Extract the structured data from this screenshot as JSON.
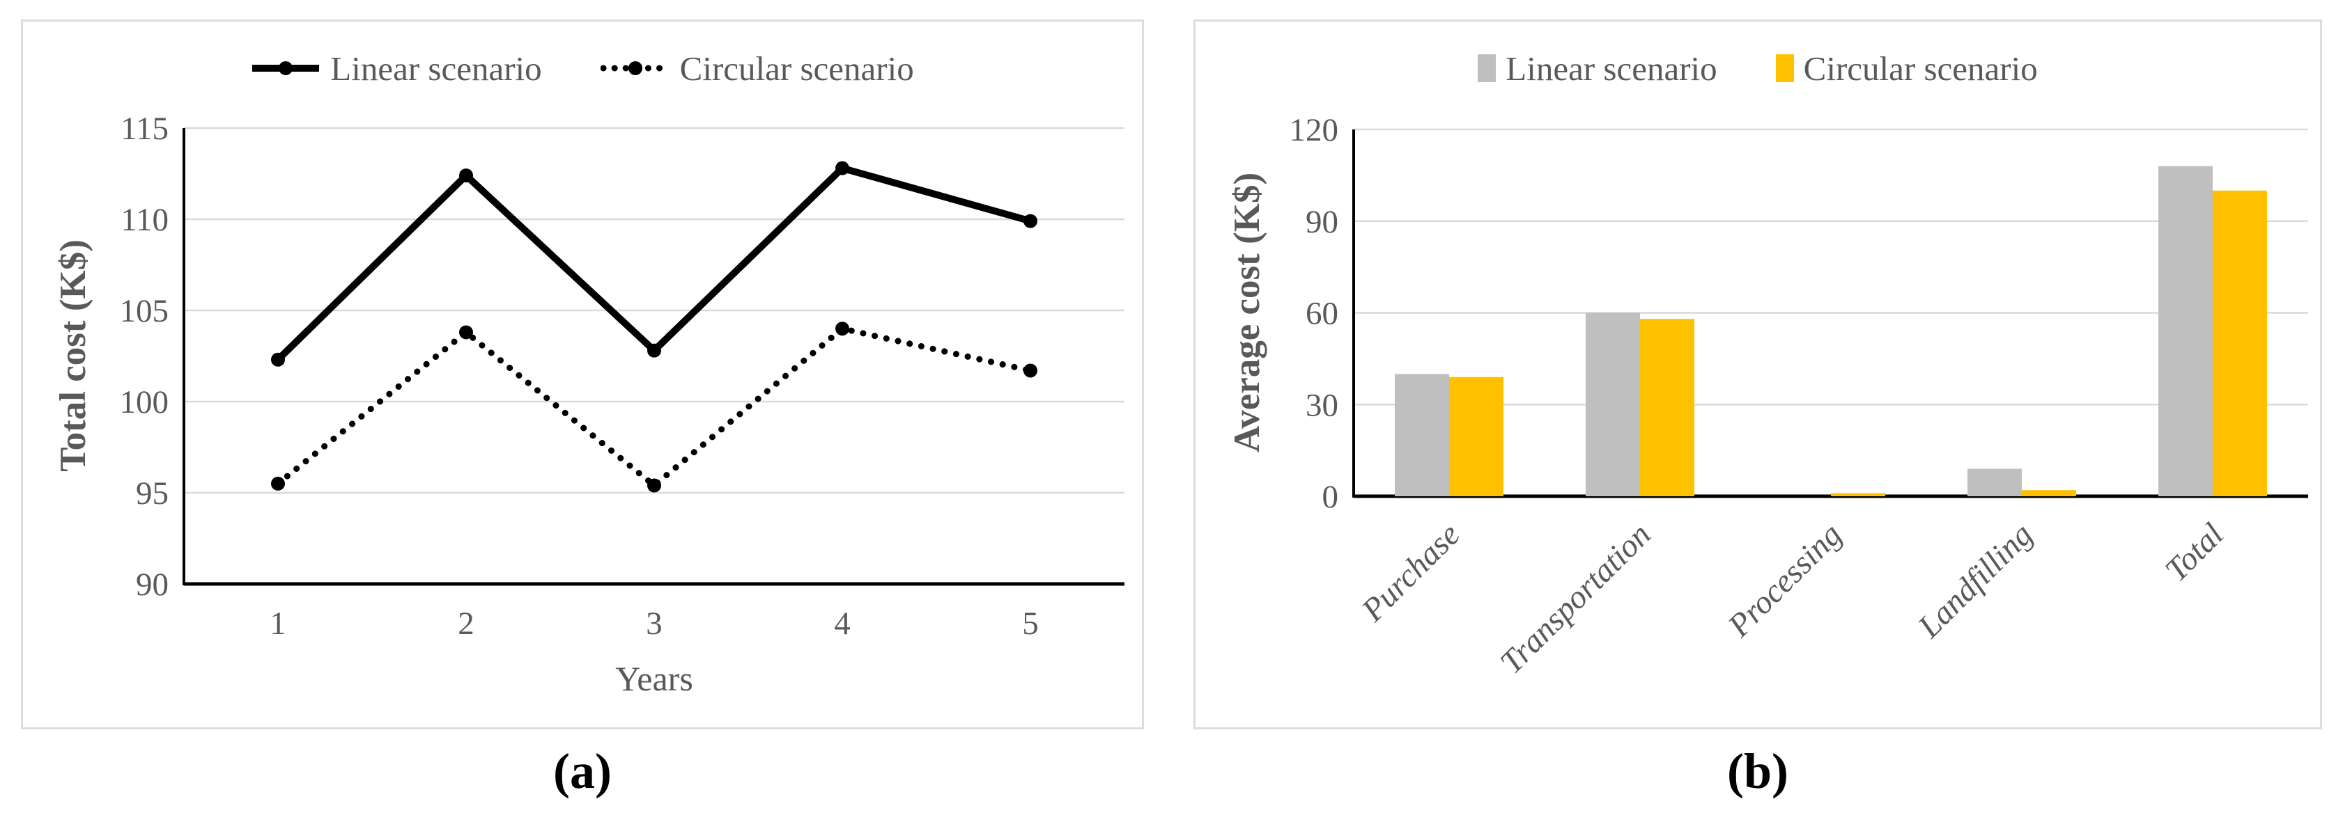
{
  "figure": {
    "panel_a_label": "(a)",
    "panel_b_label": "(b)"
  },
  "colors": {
    "axis_text": "#595959",
    "gridline": "#d9d9d9",
    "axis_line": "#000000",
    "line_series": "#000000",
    "bar_gray": "#bfbfbf",
    "bar_gold": "#ffc000",
    "panel_border": "#dcdcdc"
  },
  "chart_data": [
    {
      "type": "line",
      "title": "",
      "xlabel": "Years",
      "ylabel": "Total cost (K$)",
      "x": [
        1,
        2,
        3,
        4,
        5
      ],
      "x_tick_labels": [
        "1",
        "2",
        "3",
        "4",
        "5"
      ],
      "ylim": [
        90,
        115
      ],
      "yticks": [
        90,
        95,
        100,
        105,
        110,
        115
      ],
      "grid": true,
      "legend_position": "top-center",
      "series": [
        {
          "name": "Linear scenario",
          "style": "solid",
          "color": "#000000",
          "values": [
            102.3,
            112.4,
            102.8,
            112.8,
            109.9
          ]
        },
        {
          "name": "Circular scenario",
          "style": "dotted",
          "color": "#000000",
          "values": [
            95.5,
            103.8,
            95.4,
            104.0,
            101.7
          ]
        }
      ]
    },
    {
      "type": "bar",
      "title": "",
      "xlabel": "",
      "ylabel": "Average cost (K$)",
      "categories": [
        "Purchase",
        "Transportation",
        "Processing",
        "Landfilling",
        "Total"
      ],
      "ylim": [
        0,
        120
      ],
      "yticks": [
        0,
        30,
        60,
        90,
        120
      ],
      "grid": true,
      "legend_position": "top-center",
      "series": [
        {
          "name": "Linear scenario",
          "color": "#bfbfbf",
          "values": [
            40,
            60,
            0,
            9,
            108
          ]
        },
        {
          "name": "Circular scenario",
          "color": "#ffc000",
          "values": [
            39,
            58,
            1,
            2,
            100
          ]
        }
      ]
    }
  ]
}
